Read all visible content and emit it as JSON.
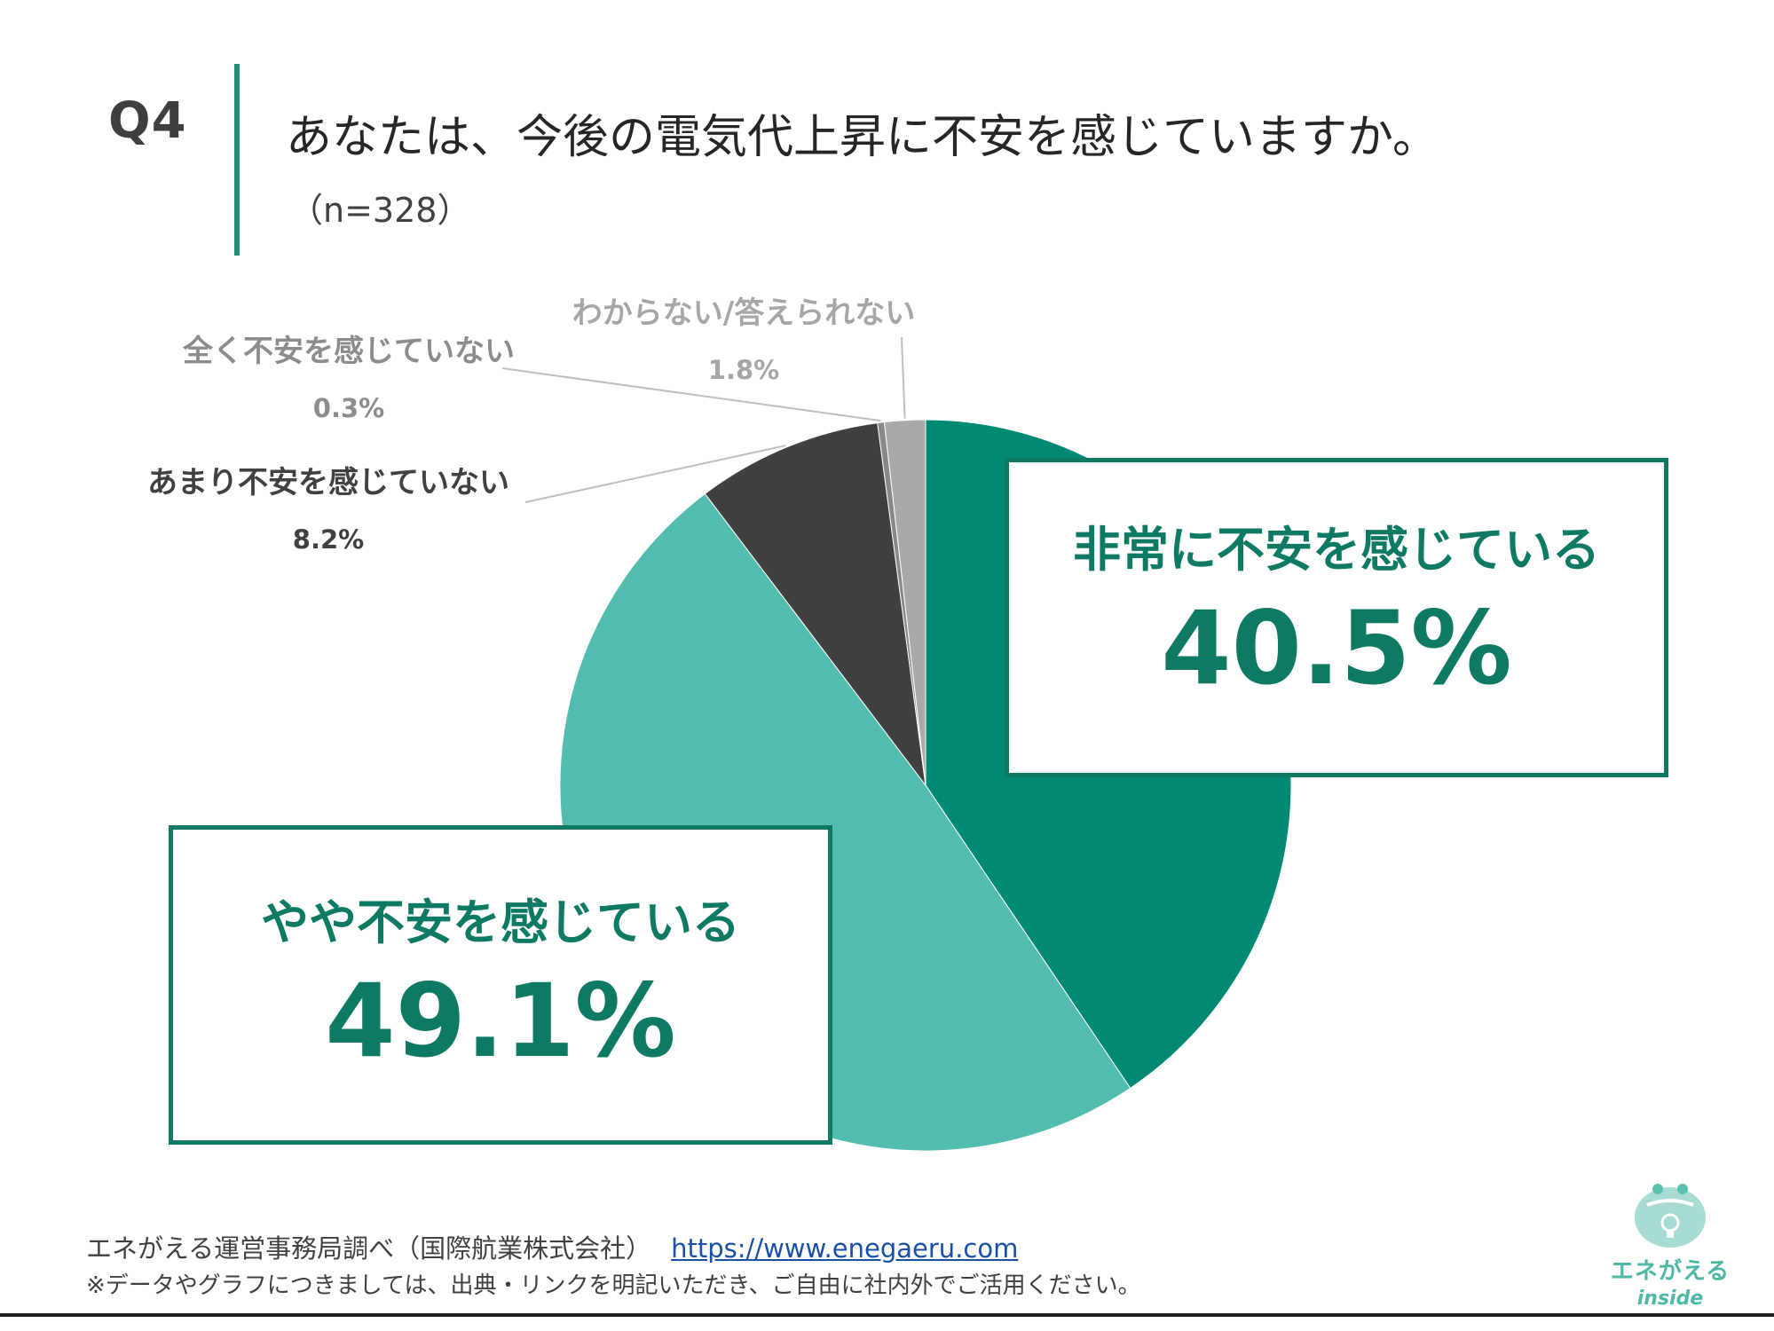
{
  "header": {
    "question_number": "Q4",
    "title": "あなたは、今後の電気代上昇に不安を感じていますか。",
    "sample": "（n=328）"
  },
  "chart_data": {
    "type": "pie",
    "title": "あなたは、今後の電気代上昇に不安を感じていますか。",
    "categories": [
      "非常に不安を感じている",
      "やや不安を感じている",
      "あまり不安を感じていない",
      "全く不安を感じていない",
      "わからない/答えられない"
    ],
    "values": [
      40.5,
      49.1,
      8.2,
      0.3,
      1.8
    ],
    "value_labels": [
      "40.5%",
      "49.1%",
      "8.2%",
      "0.3%",
      "1.8%"
    ],
    "colors": [
      "#008a74",
      "#52bdaf",
      "#404040",
      "#888888",
      "#a9a9a9"
    ],
    "start": "12 o'clock, clockwise"
  },
  "labels": {
    "very": {
      "label": "非常に不安を感じている",
      "value": "40.5%"
    },
    "somewhat": {
      "label": "やや不安を感じている",
      "value": "49.1%"
    },
    "not_much": {
      "label": "あまり不安を感じていない",
      "value": "8.2%"
    },
    "not_at_all": {
      "label": "全く不安を感じていない",
      "value": "0.3%"
    },
    "unknown": {
      "label": "わからない/答えられない",
      "value": "1.8%"
    }
  },
  "footer": {
    "source": "エネがえる運営事務局調べ（国際航業株式会社）",
    "url": "https://www.enegaeru.com",
    "note": "※データやグラフにつきましては、出典・リンクを明記いただき、ご自由に社内外でご活用ください。"
  },
  "logo": {
    "line1": "エネがえる",
    "line2": "inside"
  }
}
